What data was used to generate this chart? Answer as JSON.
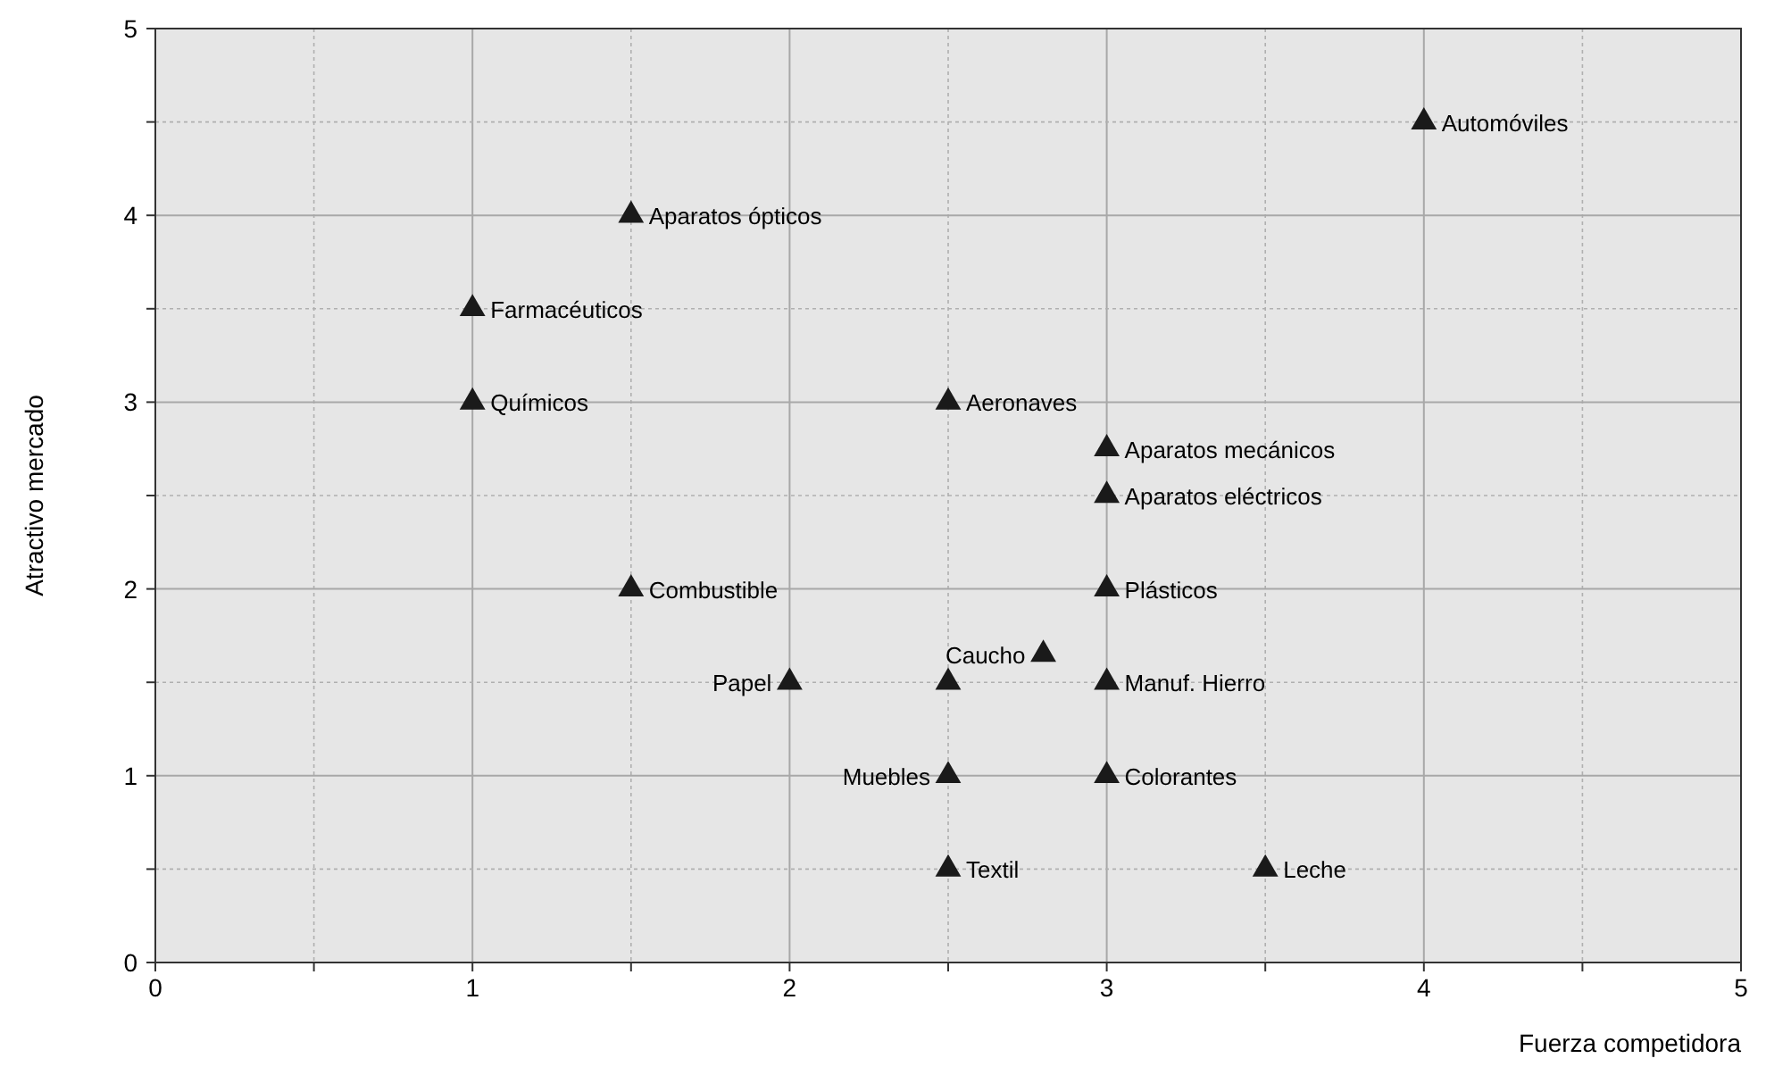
{
  "chart_data": {
    "type": "scatter",
    "xlabel": "Fuerza competidora",
    "ylabel": "Atractivo mercado",
    "series": [
      {
        "color": "#1a1a1a",
        "x": [
          4,
          1.5,
          1,
          1,
          2.5,
          3,
          3,
          1.5,
          3,
          2.8,
          2,
          2.5,
          3,
          2.5,
          3,
          2.5,
          3.5
        ],
        "values": [
          4.5,
          4,
          3.5,
          3,
          3,
          2.75,
          2.5,
          2,
          2,
          1.65,
          1.5,
          1.5,
          1.5,
          1,
          1,
          0.5,
          0.5
        ]
      }
    ],
    "xlim": [
      0,
      5
    ],
    "ylim": [
      0,
      5
    ],
    "xticks": [
      0,
      {
        "value": 0.5,
        "label": null
      },
      1,
      {
        "value": 1.5,
        "label": null
      },
      2,
      {
        "value": 2.5,
        "label": null
      },
      3,
      {
        "value": 3.5,
        "label": null
      },
      4,
      {
        "value": 4.5,
        "label": null
      },
      5
    ],
    "yticks": [
      0,
      {
        "value": 0.5,
        "label": null
      },
      1,
      {
        "value": 1.5,
        "label": null
      },
      2,
      {
        "value": 2.5,
        "label": null
      },
      3,
      {
        "value": 3.5,
        "label": null
      },
      4,
      {
        "value": 4.5,
        "label": null
      },
      5
    ],
    "grid": true,
    "marker": "triangle",
    "annotations": [
      {
        "text": "Automóviles",
        "x": 4,
        "y": 4.5
      },
      {
        "text": "Aparatos ópticos",
        "x": 1.5,
        "y": 4
      },
      {
        "text": "Farmacéuticos",
        "x": 1,
        "y": 3.5
      },
      {
        "text": "Químicos",
        "x": 1,
        "y": 3
      },
      {
        "text": "Aeronaves",
        "x": 2.5,
        "y": 3
      },
      {
        "text": "Aparatos mecánicos",
        "x": 3,
        "y": 2.75
      },
      {
        "text": "Aparatos eléctricos",
        "x": 3,
        "y": 2.5
      },
      {
        "text": "Combustible",
        "x": 1.5,
        "y": 2
      },
      {
        "text": "Plásticos",
        "x": 3,
        "y": 2
      },
      {
        "text": "Caucho",
        "x": 2.8,
        "y": 1.65
      },
      {
        "text": "Papel",
        "x": 2,
        "y": 1.5
      },
      {
        "text": "Manuf. Hierro",
        "x": 3,
        "y": 1.5
      },
      {
        "text": "Muebles",
        "x": 2.5,
        "y": 1
      },
      {
        "text": "Colorantes",
        "x": 3,
        "y": 1
      },
      {
        "text": "Textil",
        "x": 2.5,
        "y": 0.5
      },
      {
        "text": "Leche",
        "x": 3.5,
        "y": 0.5
      }
    ]
  }
}
